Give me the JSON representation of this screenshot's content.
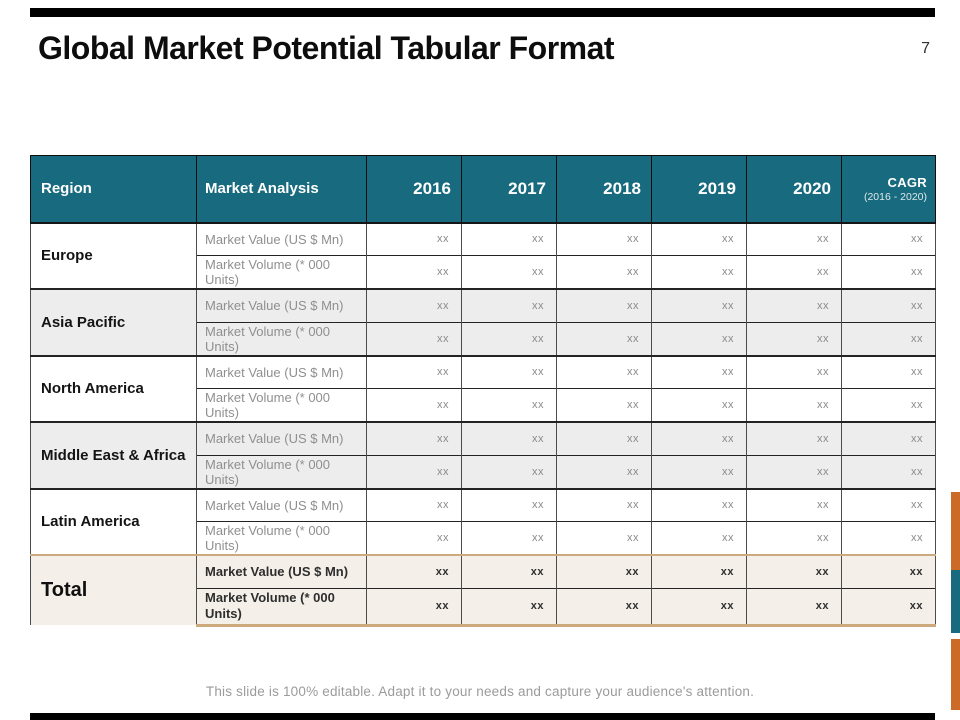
{
  "title": "Global Market Potential Tabular Format",
  "page_number": "7",
  "footer": "This slide is 100% editable. Adapt it to your needs and capture your audience's attention.",
  "colors": {
    "teal": "#186A7E",
    "orange": "#CC6A28",
    "alt_row": "#EDEDED",
    "total_bg": "#F4F0E9",
    "tan_border": "#CDAA7E"
  },
  "table": {
    "headers": {
      "region": "Region",
      "analysis": "Market Analysis",
      "years": [
        "2016",
        "2017",
        "2018",
        "2019",
        "2020"
      ],
      "cagr": "CAGR",
      "cagr_sub": "(2016 - 2020)"
    },
    "value_label": "Market Value (US $ Mn)",
    "volume_label": "Market Volume (* 000 Units)",
    "placeholder": "xx",
    "value_columns": 6,
    "regions": [
      "Europe",
      "Asia Pacific",
      "North America",
      "Middle East & Africa",
      "Latin America"
    ],
    "total_label": "Total",
    "total_value_label": "Market Value (US $ Mn)",
    "total_volume_label": "Market Volume (* 000 Units)"
  }
}
